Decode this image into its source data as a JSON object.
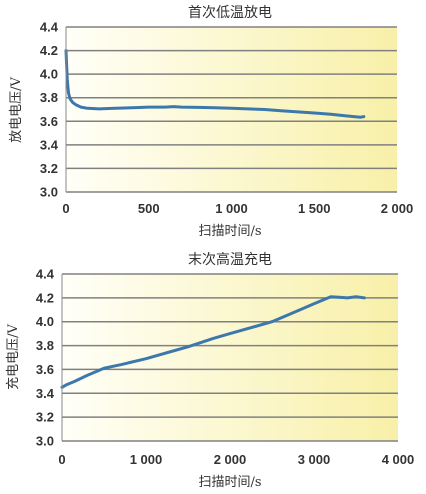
{
  "colors": {
    "series": "#3c78ac",
    "grid": "#808080",
    "axis": "#888888",
    "plot_bg_left": "#fffff8",
    "plot_bg_right": "#f8f0a8",
    "text": "#333333"
  },
  "chart_data": [
    {
      "type": "line",
      "title": "首次低温放电",
      "xlabel": "扫描时间/s",
      "ylabel": "放电电压/V",
      "xlim": [
        0,
        2000
      ],
      "ylim": [
        3.0,
        4.4
      ],
      "xticks": [
        0,
        500,
        1000,
        1500,
        2000
      ],
      "xtick_labels": [
        "0",
        "500",
        "1 000",
        "1 500",
        "2 000"
      ],
      "yticks": [
        3.0,
        3.2,
        3.4,
        3.6,
        3.8,
        4.0,
        4.2,
        4.4
      ],
      "ytick_labels": [
        "3.0",
        "3.2",
        "3.4",
        "3.6",
        "3.8",
        "4.0",
        "4.2",
        "4.4"
      ],
      "grid": true,
      "series": [
        {
          "x": [
            0,
            3,
            8,
            15,
            25,
            40,
            60,
            90,
            130,
            200,
            300,
            400,
            500,
            600,
            650,
            700,
            800,
            900,
            1000,
            1100,
            1200,
            1300,
            1400,
            1500,
            1600,
            1700,
            1780,
            1800
          ],
          "values": [
            4.2,
            4.1,
            3.95,
            3.84,
            3.79,
            3.76,
            3.74,
            3.72,
            3.71,
            3.705,
            3.71,
            3.715,
            3.72,
            3.72,
            3.725,
            3.72,
            3.718,
            3.715,
            3.71,
            3.705,
            3.7,
            3.69,
            3.68,
            3.67,
            3.66,
            3.645,
            3.635,
            3.64
          ]
        }
      ]
    },
    {
      "type": "line",
      "title": "末次高温充电",
      "xlabel": "扫描时间/s",
      "ylabel": "充电电压/V",
      "xlim": [
        0,
        4000
      ],
      "ylim": [
        3.0,
        4.4
      ],
      "xticks": [
        0,
        1000,
        2000,
        3000,
        4000
      ],
      "xtick_labels": [
        "0",
        "1 000",
        "2 000",
        "3 000",
        "4 000"
      ],
      "yticks": [
        3.0,
        3.2,
        3.4,
        3.6,
        3.8,
        4.0,
        4.2,
        4.4
      ],
      "ytick_labels": [
        "3.0",
        "3.2",
        "3.4",
        "3.6",
        "3.8",
        "4.0",
        "4.2",
        "4.4"
      ],
      "grid": true,
      "series": [
        {
          "x": [
            0,
            50,
            150,
            300,
            500,
            700,
            1000,
            1300,
            1500,
            1800,
            2000,
            2300,
            2500,
            2800,
            3000,
            3200,
            3300,
            3400,
            3500,
            3600
          ],
          "values": [
            3.45,
            3.47,
            3.5,
            3.55,
            3.61,
            3.64,
            3.69,
            3.75,
            3.79,
            3.86,
            3.9,
            3.96,
            4.0,
            4.09,
            4.15,
            4.21,
            4.205,
            4.2,
            4.21,
            4.2
          ]
        }
      ]
    }
  ]
}
